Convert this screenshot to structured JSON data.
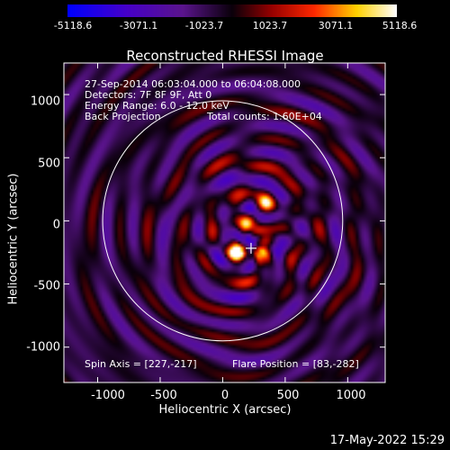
{
  "chart_data": {
    "type": "heatmap",
    "title": "Reconstructed RHESSI Image",
    "xlabel": "Heliocentric X (arcsec)",
    "ylabel": "Heliocentric Y (arcsec)",
    "xlim": [
      -1270,
      1300
    ],
    "ylim": [
      -1280,
      1250
    ],
    "xticks": [
      "-1000",
      "-500",
      "0",
      "500",
      "1000"
    ],
    "xtick_values": [
      -1000,
      -500,
      0,
      500,
      1000
    ],
    "yticks": [
      "1000",
      "500",
      "0",
      "-500",
      "-1000"
    ],
    "ytick_values": [
      1000,
      500,
      0,
      -500,
      -1000
    ],
    "colorbar": {
      "ticks": [
        "-5118.6",
        "-3071.1",
        "-1023.7",
        "1023.7",
        "3071.1",
        "5118.6"
      ],
      "tick_values": [
        -5118.6,
        -3071.1,
        -1023.7,
        1023.7,
        3071.1,
        5118.6
      ],
      "range": [
        -5118.6,
        5118.6
      ]
    },
    "annotations": [
      "27-Sep-2014 06:03:04.000 to 06:04:08.000",
      "Detectors: 7F 8F 9F, Att 0",
      "Energy Range: 6.0 - 12.0 keV",
      "Back Projection",
      "Total counts: 1.60E+04"
    ],
    "spin_axis": "Spin Axis = [227,-217]",
    "flare_position": "Flare Position = [83,-282]",
    "limb_radius_arcsec": 960,
    "spin_axis_value": [
      227,
      -217
    ],
    "bright_sources": [
      {
        "x": 120,
        "y": -250,
        "intensity": 5000
      },
      {
        "x": 300,
        "y": -260,
        "intensity": 3200
      },
      {
        "x": 340,
        "y": 140,
        "intensity": 4000
      },
      {
        "x": 180,
        "y": 0,
        "intensity": 1800
      }
    ]
  },
  "timestamp": "17-May-2022 15:29"
}
